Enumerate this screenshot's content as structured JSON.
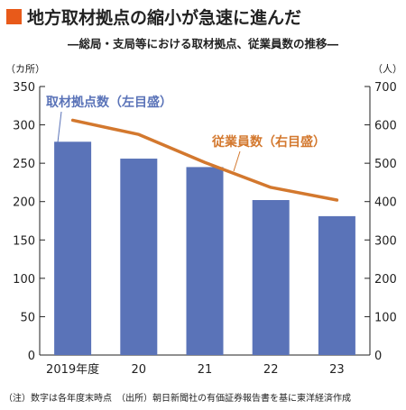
{
  "title": "地方取材拠点の縮小が急速に進んだ",
  "subtitle": "―総局・支局等における取材拠点、従業員数の推移―",
  "note": "（注）数字は各年度末時点　（出所）朝日新聞社の有価証券報告書を基に東洋経済作成",
  "colors": {
    "bar": "#5a73b8",
    "line": "#d3782e",
    "marker": "#e85a1a"
  },
  "chart_data": {
    "type": "bar",
    "categories": [
      "2019年度",
      "20",
      "21",
      "22",
      "23"
    ],
    "series": [
      {
        "name": "取材拠点数（左目盛）",
        "type": "bar",
        "axis": "left",
        "values": [
          278,
          256,
          245,
          202,
          181
        ]
      },
      {
        "name": "従業員数（右目盛）",
        "type": "line",
        "axis": "right",
        "values": [
          612,
          575,
          502,
          437,
          404
        ]
      }
    ],
    "y_left": {
      "unit": "（カ所）",
      "ylim": [
        0,
        350
      ],
      "ticks": [
        0,
        50,
        100,
        150,
        200,
        250,
        300,
        350
      ]
    },
    "y_right": {
      "unit": "（人）",
      "ylim": [
        0,
        700
      ],
      "ticks": [
        0,
        100,
        200,
        300,
        400,
        500,
        600,
        700
      ]
    },
    "grid": false
  }
}
